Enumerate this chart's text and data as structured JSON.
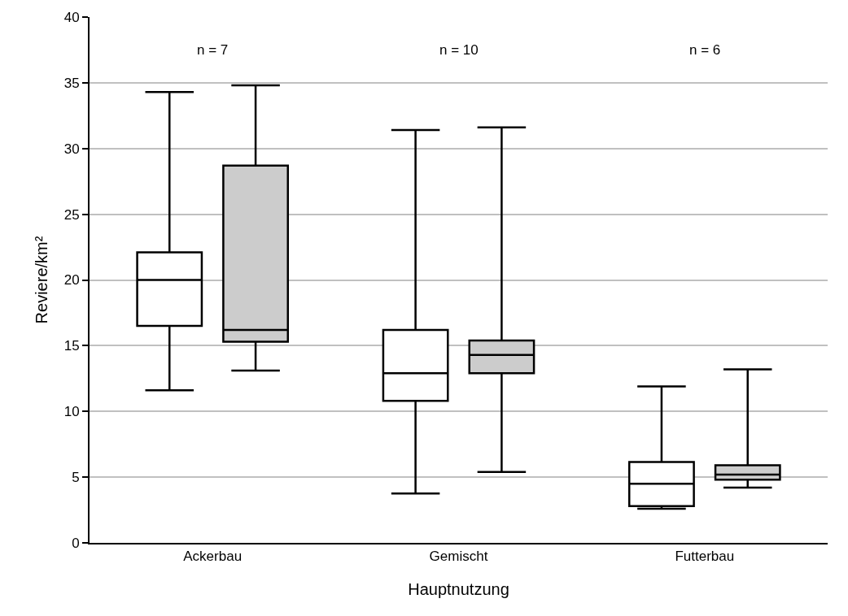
{
  "chart_data": {
    "type": "box",
    "xlabel": "Hauptnutzung",
    "ylabel": "Reviere/km²",
    "categories": [
      "Ackerbau",
      "Gemischt",
      "Futterbau"
    ],
    "series": [
      {
        "color": "#ffffff",
        "boxes": [
          {
            "low": 11.6,
            "q1": 16.5,
            "median": 20.0,
            "q3": 22.1,
            "high": 34.3
          },
          {
            "low": 3.75,
            "q1": 10.8,
            "median": 12.9,
            "q3": 16.2,
            "high": 31.4
          },
          {
            "low": 2.6,
            "q1": 2.8,
            "median": 4.5,
            "q3": 6.15,
            "high": 11.9
          }
        ]
      },
      {
        "color": "#cccccc",
        "boxes": [
          {
            "low": 13.1,
            "q1": 15.3,
            "median": 16.2,
            "q3": 28.7,
            "high": 34.8
          },
          {
            "low": 5.4,
            "q1": 12.9,
            "median": 14.3,
            "q3": 15.4,
            "high": 31.6
          },
          {
            "low": 4.2,
            "q1": 4.8,
            "median": 5.2,
            "q3": 5.9,
            "high": 13.2
          }
        ]
      }
    ],
    "annotations": [
      "n = 7",
      "n = 10",
      "n = 6"
    ],
    "ylim": [
      0,
      40
    ],
    "yticks": [
      0,
      5,
      10,
      15,
      20,
      25,
      30,
      35,
      40
    ],
    "grid": "y"
  }
}
